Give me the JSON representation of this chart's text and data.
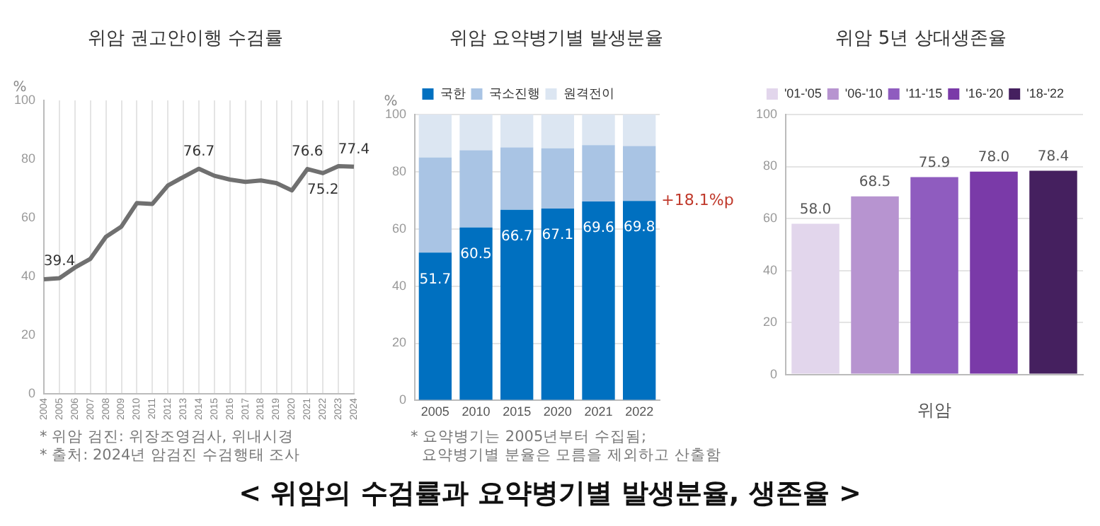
{
  "chart_data": [
    {
      "type": "line",
      "title": "위암 권고안이행 수검률",
      "ylabel": "%",
      "categories": [
        "2004",
        "2005",
        "2006",
        "2007",
        "2008",
        "2009",
        "2010",
        "2011",
        "2012",
        "2013",
        "2014",
        "2015",
        "2016",
        "2017",
        "2018",
        "2019",
        "2020",
        "2021",
        "2022",
        "2023",
        "2024"
      ],
      "series": [
        {
          "color": "#707070",
          "values": [
            39.0,
            39.4,
            43.0,
            46.0,
            53.5,
            57.0,
            65.0,
            64.7,
            71.0,
            73.9,
            76.7,
            74.3,
            73.0,
            72.2,
            72.7,
            71.8,
            69.3,
            76.6,
            75.2,
            77.6,
            77.4
          ],
          "value_labels": [
            null,
            "39.4",
            null,
            null,
            null,
            null,
            null,
            null,
            null,
            null,
            "76.7",
            null,
            null,
            null,
            null,
            null,
            null,
            "76.6",
            "75.2",
            null,
            "77.4"
          ]
        }
      ],
      "ylim": [
        0,
        100
      ],
      "yticks": [
        0,
        20,
        40,
        60,
        80,
        100
      ],
      "grid": "x",
      "marker": "none",
      "line_style": "solid",
      "annotations": [
        "* 위암 검진: 위장조영검사, 위내시경",
        "* 출처: 2024년 암검진 수검행태 조사"
      ]
    },
    {
      "type": "bar",
      "title": "위암 요약병기별 발생분율",
      "ylabel": "%",
      "stacked": true,
      "categories": [
        "2005",
        "2010",
        "2015",
        "2020",
        "2021",
        "2022"
      ],
      "series": [
        {
          "name": "국한",
          "color": "#0070c0",
          "values": [
            51.7,
            60.5,
            66.7,
            67.1,
            69.6,
            69.8
          ],
          "value_labels": [
            "51.7",
            "60.5",
            "66.7",
            "67.1",
            "69.6",
            "69.8"
          ]
        },
        {
          "name": "국소진행",
          "color": "#a9c4e4",
          "values": [
            33.3,
            27.0,
            21.8,
            21.1,
            19.7,
            19.2
          ]
        },
        {
          "name": "원격전이",
          "color": "#dce6f2",
          "values": [
            15.0,
            12.5,
            11.5,
            11.8,
            10.7,
            11.0
          ]
        }
      ],
      "ylim": [
        0,
        100
      ],
      "yticks": [
        0,
        20,
        40,
        60,
        80,
        100
      ],
      "grid": "y",
      "legend": "top",
      "annotations": [
        {
          "text": "+18.1%p",
          "x": "2022",
          "y": 69.8
        },
        "* 요약병기는 2005년부터 수집됨;",
        "요약병기별 분율은 모름을 제외하고 산출함"
      ]
    },
    {
      "type": "bar",
      "title": "위암  5년 상대생존율",
      "xlabel": "위암",
      "categories": [
        null,
        null,
        null,
        null,
        null
      ],
      "series": [
        {
          "name": "'01-'05",
          "color": "#e2d6ec",
          "values": [
            58.0,
            null,
            null,
            null,
            null
          ],
          "value_labels": [
            "58.0",
            null,
            null,
            null,
            null
          ]
        },
        {
          "name": "'06-'10",
          "color": "#b794d0",
          "values": [
            null,
            68.5,
            null,
            null,
            null
          ],
          "value_labels": [
            null,
            "68.5",
            null,
            null,
            null
          ]
        },
        {
          "name": "'11-'15",
          "color": "#8f5cbf",
          "values": [
            null,
            null,
            75.9,
            null,
            null
          ],
          "value_labels": [
            null,
            null,
            "75.9",
            null,
            null
          ]
        },
        {
          "name": "'16-'20",
          "color": "#7a3aa8",
          "values": [
            null,
            null,
            null,
            78.0,
            null
          ],
          "value_labels": [
            null,
            null,
            null,
            "78.0",
            null
          ]
        },
        {
          "name": "'18-'22",
          "color": "#45205f",
          "values": [
            null,
            null,
            null,
            null,
            78.4
          ],
          "value_labels": [
            null,
            null,
            null,
            null,
            "78.4"
          ]
        }
      ],
      "ylim": [
        0,
        100
      ],
      "yticks": [
        0,
        20,
        40,
        60,
        80,
        100
      ],
      "grid": "y",
      "legend": "top"
    },
    {
      "type": "other",
      "title": "< 위암의 수검률과 요약병기별 발생분율, 생존율 >"
    }
  ]
}
